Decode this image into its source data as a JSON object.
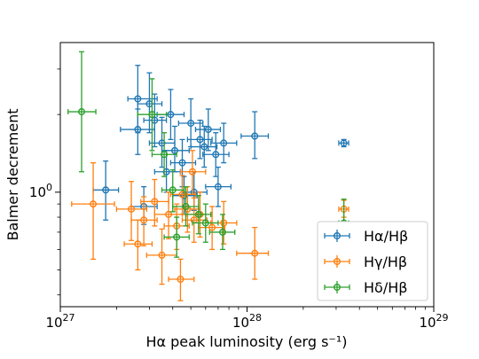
{
  "chart_data": {
    "type": "scatter",
    "xlabel": "Hα peak luminosity (erg s⁻¹)",
    "ylabel": "Balmer decrement",
    "x_scale": "log",
    "y_scale": "log",
    "xlim": [
      1e+27,
      1e+29
    ],
    "ylim": [
      0.36,
      3.8
    ],
    "x_ticks": [
      {
        "value": 1e+27,
        "base": "10",
        "exp": "27"
      },
      {
        "value": 1e+28,
        "base": "10",
        "exp": "28"
      },
      {
        "value": 1e+29,
        "base": "10",
        "exp": "29"
      }
    ],
    "y_ticks": [
      {
        "value": 1.0,
        "base": "10",
        "exp": "0"
      }
    ],
    "legend": {
      "position": "lower-right",
      "entries": [
        "Hα/Hβ",
        "Hγ/Hβ",
        "Hδ/Hβ"
      ]
    },
    "series": [
      {
        "name": "Hα/Hβ",
        "color": "#1f77b4",
        "points": [
          {
            "x": 1.75e+27,
            "y": 1.02,
            "xlo": 1.5e+27,
            "xhi": 2.05e+27,
            "ylo": 0.78,
            "yhi": 1.32
          },
          {
            "x": 2.6e+27,
            "y": 2.3,
            "xlo": 2.3e+27,
            "xhi": 3.3e+27,
            "ylo": 1.7,
            "yhi": 3.1
          },
          {
            "x": 3e+27,
            "y": 2.2,
            "xlo": 2.6e+27,
            "xhi": 3.5e+27,
            "ylo": 1.7,
            "yhi": 2.9
          },
          {
            "x": 2.6e+27,
            "y": 1.75,
            "xlo": 2.1e+27,
            "xhi": 3.2e+27,
            "ylo": 1.4,
            "yhi": 2.1
          },
          {
            "x": 3.2e+27,
            "y": 1.9,
            "xlo": 2.8e+27,
            "xhi": 3.7e+27,
            "ylo": 1.5,
            "yhi": 2.4
          },
          {
            "x": 3.5e+27,
            "y": 1.55,
            "xlo": 3e+27,
            "xhi": 4.1e+27,
            "ylo": 1.25,
            "yhi": 1.95
          },
          {
            "x": 3.9e+27,
            "y": 2.0,
            "xlo": 3.3e+27,
            "xhi": 4.6e+27,
            "ylo": 1.6,
            "yhi": 2.5
          },
          {
            "x": 4.1e+27,
            "y": 1.45,
            "xlo": 3.5e+27,
            "xhi": 4.9e+27,
            "ylo": 1.2,
            "yhi": 1.8
          },
          {
            "x": 3.7e+27,
            "y": 1.2,
            "xlo": 3.2e+27,
            "xhi": 4.4e+27,
            "ylo": 1.0,
            "yhi": 1.45
          },
          {
            "x": 4.5e+27,
            "y": 1.3,
            "xlo": 3.9e+27,
            "xhi": 5.3e+27,
            "ylo": 1.05,
            "yhi": 1.6
          },
          {
            "x": 5e+27,
            "y": 1.85,
            "xlo": 4.3e+27,
            "xhi": 5.8e+27,
            "ylo": 1.5,
            "yhi": 2.3
          },
          {
            "x": 5.6e+27,
            "y": 1.6,
            "xlo": 4.8e+27,
            "xhi": 6.5e+27,
            "ylo": 1.35,
            "yhi": 1.9
          },
          {
            "x": 6.2e+27,
            "y": 1.75,
            "xlo": 5.3e+27,
            "xhi": 7.2e+27,
            "ylo": 1.45,
            "yhi": 2.1
          },
          {
            "x": 7.5e+27,
            "y": 1.55,
            "xlo": 6.4e+27,
            "xhi": 8.8e+27,
            "ylo": 1.3,
            "yhi": 1.85
          },
          {
            "x": 6.8e+27,
            "y": 1.4,
            "xlo": 5.8e+27,
            "xhi": 8e+27,
            "ylo": 1.15,
            "yhi": 1.7
          },
          {
            "x": 7e+27,
            "y": 1.05,
            "xlo": 6e+27,
            "xhi": 8.2e+27,
            "ylo": 0.88,
            "yhi": 1.25
          },
          {
            "x": 5.2e+27,
            "y": 1.0,
            "xlo": 4.5e+27,
            "xhi": 6.1e+27,
            "ylo": 0.85,
            "yhi": 1.2
          },
          {
            "x": 4.6e+27,
            "y": 0.97,
            "xlo": 4e+27,
            "xhi": 5.4e+27,
            "ylo": 0.82,
            "yhi": 1.15
          },
          {
            "x": 2.8e+27,
            "y": 0.88,
            "xlo": 2.4e+27,
            "xhi": 3.3e+27,
            "ylo": 0.75,
            "yhi": 1.05
          },
          {
            "x": 5.9e+27,
            "y": 1.5,
            "xlo": 5e+27,
            "xhi": 6.9e+27,
            "ylo": 1.25,
            "yhi": 1.8
          },
          {
            "x": 1.1e+28,
            "y": 1.65,
            "xlo": 9.3e+27,
            "xhi": 1.3e+28,
            "ylo": 1.35,
            "yhi": 2.05
          },
          {
            "x": 3.3e+28,
            "y": 1.55,
            "xlo": 3.1e+28,
            "xhi": 3.5e+28,
            "ylo": 1.5,
            "yhi": 1.6
          }
        ]
      },
      {
        "name": "Hγ/Hβ",
        "color": "#ff7f0e",
        "points": [
          {
            "x": 1.5e+27,
            "y": 0.9,
            "xlo": 1.15e+27,
            "xhi": 1.95e+27,
            "ylo": 0.55,
            "yhi": 1.3
          },
          {
            "x": 2.4e+27,
            "y": 0.86,
            "xlo": 2e+27,
            "xhi": 2.9e+27,
            "ylo": 0.65,
            "yhi": 1.1
          },
          {
            "x": 2.6e+27,
            "y": 0.63,
            "xlo": 2.2e+27,
            "xhi": 3.1e+27,
            "ylo": 0.5,
            "yhi": 0.78
          },
          {
            "x": 2.8e+27,
            "y": 0.78,
            "xlo": 2.4e+27,
            "xhi": 3.3e+27,
            "ylo": 0.62,
            "yhi": 0.96
          },
          {
            "x": 3.2e+27,
            "y": 0.92,
            "xlo": 2.7e+27,
            "xhi": 3.8e+27,
            "ylo": 0.74,
            "yhi": 1.12
          },
          {
            "x": 3.5e+27,
            "y": 0.57,
            "xlo": 2.9e+27,
            "xhi": 4.2e+27,
            "ylo": 0.44,
            "yhi": 0.72
          },
          {
            "x": 3.8e+27,
            "y": 0.82,
            "xlo": 3.2e+27,
            "xhi": 4.5e+27,
            "ylo": 0.66,
            "yhi": 1.0
          },
          {
            "x": 4.2e+27,
            "y": 0.74,
            "xlo": 3.6e+27,
            "xhi": 4.9e+27,
            "ylo": 0.6,
            "yhi": 0.9
          },
          {
            "x": 4.4e+27,
            "y": 0.46,
            "xlo": 3.8e+27,
            "xhi": 5.2e+27,
            "ylo": 0.38,
            "yhi": 0.55
          },
          {
            "x": 4.8e+27,
            "y": 0.86,
            "xlo": 4.1e+27,
            "xhi": 5.6e+27,
            "ylo": 0.7,
            "yhi": 1.05
          },
          {
            "x": 5.2e+27,
            "y": 0.78,
            "xlo": 4.5e+27,
            "xhi": 6.1e+27,
            "ylo": 0.64,
            "yhi": 0.95
          },
          {
            "x": 5.6e+27,
            "y": 0.82,
            "xlo": 4.8e+27,
            "xhi": 6.5e+27,
            "ylo": 0.67,
            "yhi": 1.0
          },
          {
            "x": 6.5e+27,
            "y": 0.73,
            "xlo": 5.5e+27,
            "xhi": 7.6e+27,
            "ylo": 0.6,
            "yhi": 0.88
          },
          {
            "x": 7.5e+27,
            "y": 0.76,
            "xlo": 6.4e+27,
            "xhi": 8.8e+27,
            "ylo": 0.63,
            "yhi": 0.92
          },
          {
            "x": 5.1e+27,
            "y": 1.2,
            "xlo": 4.4e+27,
            "xhi": 6e+27,
            "ylo": 0.98,
            "yhi": 1.45
          },
          {
            "x": 4.5e+27,
            "y": 0.98,
            "xlo": 3.9e+27,
            "xhi": 5.3e+27,
            "ylo": 0.82,
            "yhi": 1.16
          },
          {
            "x": 1.1e+28,
            "y": 0.58,
            "xlo": 8.8e+27,
            "xhi": 1.3e+28,
            "ylo": 0.46,
            "yhi": 0.73
          },
          {
            "x": 3.3e+28,
            "y": 0.86,
            "xlo": 3.1e+28,
            "xhi": 3.5e+28,
            "ylo": 0.8,
            "yhi": 0.93
          }
        ]
      },
      {
        "name": "Hδ/Hβ",
        "color": "#2ca02c",
        "points": [
          {
            "x": 1.3e+27,
            "y": 2.05,
            "xlo": 1.1e+27,
            "xhi": 1.55e+27,
            "ylo": 1.2,
            "yhi": 3.5
          },
          {
            "x": 3.1e+27,
            "y": 2.0,
            "xlo": 2.6e+27,
            "xhi": 3.7e+27,
            "ylo": 1.45,
            "yhi": 2.75
          },
          {
            "x": 3.6e+27,
            "y": 1.4,
            "xlo": 3.1e+27,
            "xhi": 4.2e+27,
            "ylo": 1.15,
            "yhi": 1.7
          },
          {
            "x": 4e+27,
            "y": 1.02,
            "xlo": 3.5e+27,
            "xhi": 4.6e+27,
            "ylo": 0.84,
            "yhi": 1.22
          },
          {
            "x": 4.2e+27,
            "y": 0.67,
            "xlo": 3.6e+27,
            "xhi": 4.9e+27,
            "ylo": 0.56,
            "yhi": 0.8
          },
          {
            "x": 4.7e+27,
            "y": 0.88,
            "xlo": 4e+27,
            "xhi": 5.5e+27,
            "ylo": 0.74,
            "yhi": 1.05
          },
          {
            "x": 5.5e+27,
            "y": 0.82,
            "xlo": 4.7e+27,
            "xhi": 6.4e+27,
            "ylo": 0.69,
            "yhi": 0.97
          },
          {
            "x": 6e+27,
            "y": 0.76,
            "xlo": 5.1e+27,
            "xhi": 7e+27,
            "ylo": 0.64,
            "yhi": 0.9
          },
          {
            "x": 7.4e+27,
            "y": 0.7,
            "xlo": 6.3e+27,
            "xhi": 8.6e+27,
            "ylo": 0.6,
            "yhi": 0.82
          },
          {
            "x": 3.3e+28,
            "y": 0.76,
            "xlo": 3.1e+28,
            "xhi": 3.5e+28,
            "ylo": 0.6,
            "yhi": 0.94
          }
        ]
      }
    ]
  }
}
